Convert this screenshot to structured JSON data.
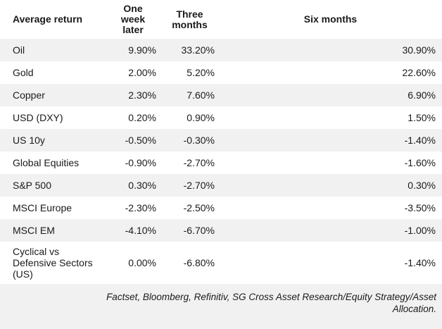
{
  "table": {
    "columns": [
      "Average return",
      "One week later",
      "Three months",
      "Six months"
    ],
    "rows": [
      {
        "label": "Oil",
        "one_week": "9.90%",
        "three_months": "33.20%",
        "six_months": "30.90%"
      },
      {
        "label": "Gold",
        "one_week": "2.00%",
        "three_months": "5.20%",
        "six_months": "22.60%"
      },
      {
        "label": "Copper",
        "one_week": "2.30%",
        "three_months": "7.60%",
        "six_months": "6.90%"
      },
      {
        "label": "USD (DXY)",
        "one_week": "0.20%",
        "three_months": "0.90%",
        "six_months": "1.50%"
      },
      {
        "label": "US 10y",
        "one_week": "-0.50%",
        "three_months": "-0.30%",
        "six_months": "-1.40%"
      },
      {
        "label": "Global Equities",
        "one_week": "-0.90%",
        "three_months": "-2.70%",
        "six_months": "-1.60%"
      },
      {
        "label": "S&P 500",
        "one_week": "0.30%",
        "three_months": "-2.70%",
        "six_months": "0.30%"
      },
      {
        "label": "MSCI Europe",
        "one_week": "-2.30%",
        "three_months": "-2.50%",
        "six_months": "-3.50%"
      },
      {
        "label": "MSCI EM",
        "one_week": "-4.10%",
        "three_months": "-6.70%",
        "six_months": "-1.00%"
      },
      {
        "label": "Cyclical vs Defensive Sectors (US)",
        "one_week": "0.00%",
        "three_months": "-6.80%",
        "six_months": "-1.40%"
      }
    ],
    "source": "Factset, Bloomberg, Refinitiv, SG Cross Asset Research/Equity Strategy/Asset Allocation."
  },
  "colors": {
    "stripe": "#f1f1f1",
    "text": "#1a1a1a",
    "background": "#ffffff"
  },
  "chart_data": {
    "type": "table",
    "title": "Average return",
    "columns": [
      "Average return",
      "One week later",
      "Three months",
      "Six months"
    ],
    "units": "percent",
    "rows": [
      [
        "Oil",
        9.9,
        33.2,
        30.9
      ],
      [
        "Gold",
        2.0,
        5.2,
        22.6
      ],
      [
        "Copper",
        2.3,
        7.6,
        6.9
      ],
      [
        "USD (DXY)",
        0.2,
        0.9,
        1.5
      ],
      [
        "US 10y",
        -0.5,
        -0.3,
        -1.4
      ],
      [
        "Global Equities",
        -0.9,
        -2.7,
        -1.6
      ],
      [
        "S&P 500",
        0.3,
        -2.7,
        0.3
      ],
      [
        "MSCI Europe",
        -2.3,
        -2.5,
        -3.5
      ],
      [
        "MSCI EM",
        -4.1,
        -6.7,
        -1.0
      ],
      [
        "Cyclical vs Defensive Sectors (US)",
        0.0,
        -6.8,
        -1.4
      ]
    ],
    "source": "Factset, Bloomberg, Refinitiv, SG Cross Asset Research/Equity Strategy/Asset Allocation."
  }
}
